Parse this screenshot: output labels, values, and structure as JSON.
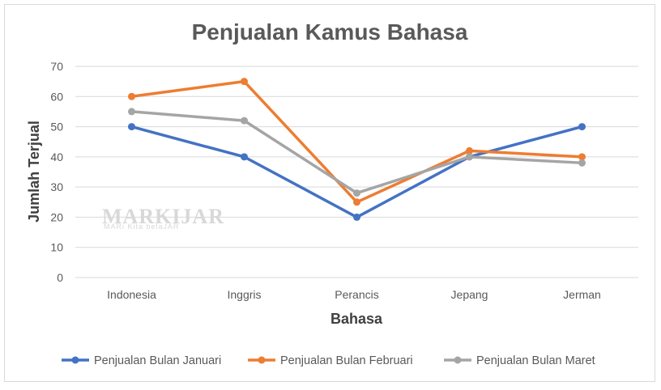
{
  "chart_data": {
    "type": "line",
    "title": "Penjualan Kamus Bahasa",
    "xlabel": "Bahasa",
    "ylabel": "Jumlah Terjual",
    "categories": [
      "Indonesia",
      "Inggris",
      "Perancis",
      "Jepang",
      "Jerman"
    ],
    "ylim": [
      0,
      70
    ],
    "yticks": [
      0,
      10,
      20,
      30,
      40,
      50,
      60,
      70
    ],
    "grid": true,
    "legend": "bottom",
    "series": [
      {
        "name": "Penjualan Bulan Januari",
        "values": [
          50,
          40,
          20,
          40,
          50
        ],
        "color": "#4472c4"
      },
      {
        "name": "Penjualan Bulan Februari",
        "values": [
          60,
          65,
          25,
          42,
          40
        ],
        "color": "#ed7d31"
      },
      {
        "name": "Penjualan Bulan Maret",
        "values": [
          55,
          52,
          28,
          40,
          38
        ],
        "color": "#a5a5a5"
      }
    ]
  },
  "watermark": {
    "text": "MARKIJAR",
    "tagline": "MARi Kita belaJAR"
  }
}
